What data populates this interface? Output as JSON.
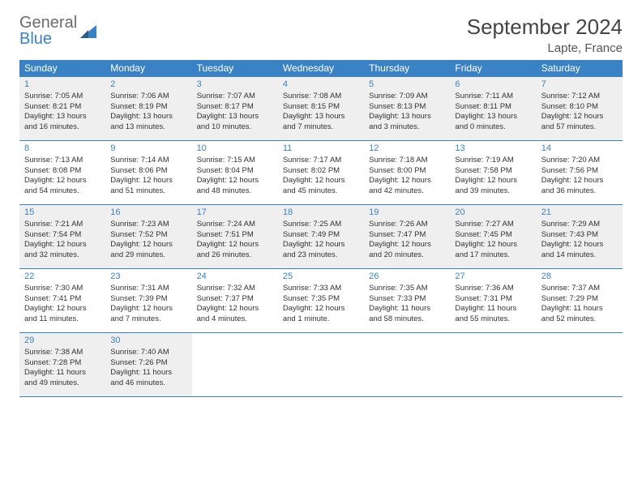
{
  "logo": {
    "part1": "General",
    "part2": "Blue"
  },
  "title": "September 2024",
  "location": "Lapte, France",
  "colors": {
    "accent": "#3b82c4",
    "shaded_bg": "#efefef",
    "text": "#333333",
    "header_text": "#ffffff",
    "logo_gray": "#6b6b6b"
  },
  "day_names": [
    "Sunday",
    "Monday",
    "Tuesday",
    "Wednesday",
    "Thursday",
    "Friday",
    "Saturday"
  ],
  "weeks": [
    {
      "shaded": true,
      "cells": [
        {
          "n": "1",
          "sr": "Sunrise: 7:05 AM",
          "ss": "Sunset: 8:21 PM",
          "d1": "Daylight: 13 hours",
          "d2": "and 16 minutes."
        },
        {
          "n": "2",
          "sr": "Sunrise: 7:06 AM",
          "ss": "Sunset: 8:19 PM",
          "d1": "Daylight: 13 hours",
          "d2": "and 13 minutes."
        },
        {
          "n": "3",
          "sr": "Sunrise: 7:07 AM",
          "ss": "Sunset: 8:17 PM",
          "d1": "Daylight: 13 hours",
          "d2": "and 10 minutes."
        },
        {
          "n": "4",
          "sr": "Sunrise: 7:08 AM",
          "ss": "Sunset: 8:15 PM",
          "d1": "Daylight: 13 hours",
          "d2": "and 7 minutes."
        },
        {
          "n": "5",
          "sr": "Sunrise: 7:09 AM",
          "ss": "Sunset: 8:13 PM",
          "d1": "Daylight: 13 hours",
          "d2": "and 3 minutes."
        },
        {
          "n": "6",
          "sr": "Sunrise: 7:11 AM",
          "ss": "Sunset: 8:11 PM",
          "d1": "Daylight: 13 hours",
          "d2": "and 0 minutes."
        },
        {
          "n": "7",
          "sr": "Sunrise: 7:12 AM",
          "ss": "Sunset: 8:10 PM",
          "d1": "Daylight: 12 hours",
          "d2": "and 57 minutes."
        }
      ]
    },
    {
      "shaded": false,
      "cells": [
        {
          "n": "8",
          "sr": "Sunrise: 7:13 AM",
          "ss": "Sunset: 8:08 PM",
          "d1": "Daylight: 12 hours",
          "d2": "and 54 minutes."
        },
        {
          "n": "9",
          "sr": "Sunrise: 7:14 AM",
          "ss": "Sunset: 8:06 PM",
          "d1": "Daylight: 12 hours",
          "d2": "and 51 minutes."
        },
        {
          "n": "10",
          "sr": "Sunrise: 7:15 AM",
          "ss": "Sunset: 8:04 PM",
          "d1": "Daylight: 12 hours",
          "d2": "and 48 minutes."
        },
        {
          "n": "11",
          "sr": "Sunrise: 7:17 AM",
          "ss": "Sunset: 8:02 PM",
          "d1": "Daylight: 12 hours",
          "d2": "and 45 minutes."
        },
        {
          "n": "12",
          "sr": "Sunrise: 7:18 AM",
          "ss": "Sunset: 8:00 PM",
          "d1": "Daylight: 12 hours",
          "d2": "and 42 minutes."
        },
        {
          "n": "13",
          "sr": "Sunrise: 7:19 AM",
          "ss": "Sunset: 7:58 PM",
          "d1": "Daylight: 12 hours",
          "d2": "and 39 minutes."
        },
        {
          "n": "14",
          "sr": "Sunrise: 7:20 AM",
          "ss": "Sunset: 7:56 PM",
          "d1": "Daylight: 12 hours",
          "d2": "and 36 minutes."
        }
      ]
    },
    {
      "shaded": true,
      "cells": [
        {
          "n": "15",
          "sr": "Sunrise: 7:21 AM",
          "ss": "Sunset: 7:54 PM",
          "d1": "Daylight: 12 hours",
          "d2": "and 32 minutes."
        },
        {
          "n": "16",
          "sr": "Sunrise: 7:23 AM",
          "ss": "Sunset: 7:52 PM",
          "d1": "Daylight: 12 hours",
          "d2": "and 29 minutes."
        },
        {
          "n": "17",
          "sr": "Sunrise: 7:24 AM",
          "ss": "Sunset: 7:51 PM",
          "d1": "Daylight: 12 hours",
          "d2": "and 26 minutes."
        },
        {
          "n": "18",
          "sr": "Sunrise: 7:25 AM",
          "ss": "Sunset: 7:49 PM",
          "d1": "Daylight: 12 hours",
          "d2": "and 23 minutes."
        },
        {
          "n": "19",
          "sr": "Sunrise: 7:26 AM",
          "ss": "Sunset: 7:47 PM",
          "d1": "Daylight: 12 hours",
          "d2": "and 20 minutes."
        },
        {
          "n": "20",
          "sr": "Sunrise: 7:27 AM",
          "ss": "Sunset: 7:45 PM",
          "d1": "Daylight: 12 hours",
          "d2": "and 17 minutes."
        },
        {
          "n": "21",
          "sr": "Sunrise: 7:29 AM",
          "ss": "Sunset: 7:43 PM",
          "d1": "Daylight: 12 hours",
          "d2": "and 14 minutes."
        }
      ]
    },
    {
      "shaded": false,
      "cells": [
        {
          "n": "22",
          "sr": "Sunrise: 7:30 AM",
          "ss": "Sunset: 7:41 PM",
          "d1": "Daylight: 12 hours",
          "d2": "and 11 minutes."
        },
        {
          "n": "23",
          "sr": "Sunrise: 7:31 AM",
          "ss": "Sunset: 7:39 PM",
          "d1": "Daylight: 12 hours",
          "d2": "and 7 minutes."
        },
        {
          "n": "24",
          "sr": "Sunrise: 7:32 AM",
          "ss": "Sunset: 7:37 PM",
          "d1": "Daylight: 12 hours",
          "d2": "and 4 minutes."
        },
        {
          "n": "25",
          "sr": "Sunrise: 7:33 AM",
          "ss": "Sunset: 7:35 PM",
          "d1": "Daylight: 12 hours",
          "d2": "and 1 minute."
        },
        {
          "n": "26",
          "sr": "Sunrise: 7:35 AM",
          "ss": "Sunset: 7:33 PM",
          "d1": "Daylight: 11 hours",
          "d2": "and 58 minutes."
        },
        {
          "n": "27",
          "sr": "Sunrise: 7:36 AM",
          "ss": "Sunset: 7:31 PM",
          "d1": "Daylight: 11 hours",
          "d2": "and 55 minutes."
        },
        {
          "n": "28",
          "sr": "Sunrise: 7:37 AM",
          "ss": "Sunset: 7:29 PM",
          "d1": "Daylight: 11 hours",
          "d2": "and 52 minutes."
        }
      ]
    },
    {
      "shaded": true,
      "cells": [
        {
          "n": "29",
          "sr": "Sunrise: 7:38 AM",
          "ss": "Sunset: 7:28 PM",
          "d1": "Daylight: 11 hours",
          "d2": "and 49 minutes."
        },
        {
          "n": "30",
          "sr": "Sunrise: 7:40 AM",
          "ss": "Sunset: 7:26 PM",
          "d1": "Daylight: 11 hours",
          "d2": "and 46 minutes."
        },
        {
          "empty": true
        },
        {
          "empty": true
        },
        {
          "empty": true
        },
        {
          "empty": true
        },
        {
          "empty": true
        }
      ]
    }
  ]
}
